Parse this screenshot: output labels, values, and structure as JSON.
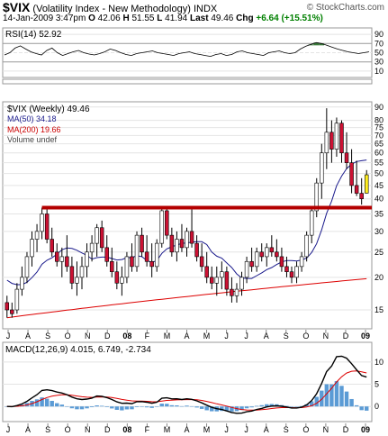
{
  "header": {
    "symbol": "$VIX",
    "name": "(Volatility Index - New Methodology)",
    "exchange": "INDX",
    "date": "14-Jan-2009 3:47pm",
    "open_label": "O",
    "open": "42.06",
    "high_label": "H",
    "high": "51.55",
    "low_label": "L",
    "low": "41.94",
    "last_label": "Last",
    "last": "49.46",
    "chg_label": "Chg",
    "chg": "+6.64 (+15.51%)",
    "brand": "© StockCharts.com"
  },
  "chart_data": {
    "type": "candlestick",
    "x_labels": [
      "J",
      "A",
      "S",
      "O",
      "N",
      "D",
      "08",
      "F",
      "M",
      "A",
      "M",
      "J",
      "J",
      "A",
      "S",
      "O",
      "N",
      "D",
      "09"
    ],
    "rsi": {
      "label": "RSI(14) 52.92",
      "yticks": [
        10,
        30,
        50,
        70,
        90
      ],
      "overbought": 70,
      "oversold": 30,
      "values": [
        45,
        50,
        60,
        65,
        58,
        52,
        48,
        45,
        55,
        60,
        50,
        44,
        48,
        52,
        55,
        50,
        47,
        45,
        48,
        52,
        58,
        55,
        50,
        46,
        44,
        48,
        50,
        52,
        54,
        50,
        48,
        46,
        44,
        48,
        50,
        52,
        48,
        46,
        44,
        42,
        46,
        48,
        44,
        46,
        52,
        54,
        50,
        48,
        46,
        44,
        50,
        52,
        54,
        50,
        48,
        50,
        58,
        64,
        68,
        72,
        70,
        66,
        62,
        58,
        55,
        52,
        50,
        48,
        50,
        52
      ]
    },
    "price": {
      "title": "$VIX (Weekly) 49.46",
      "ma50_label": "MA(50) 34.18",
      "ma200_label": "MA(200) 19.66",
      "volume_label": "Volume undef",
      "yticks": [
        15,
        20,
        25,
        30,
        35,
        40,
        45,
        50,
        55,
        60,
        65,
        70,
        75,
        80,
        90
      ],
      "ymin": 13,
      "ymax": 92,
      "log": true,
      "resistance": 37,
      "candles": [
        [
          16,
          17,
          14,
          15
        ],
        [
          15,
          16,
          14,
          14.5
        ],
        [
          15,
          19,
          14.5,
          18
        ],
        [
          18,
          22,
          17,
          20
        ],
        [
          20,
          25,
          19,
          24
        ],
        [
          24,
          30,
          22,
          28
        ],
        [
          28,
          32,
          25,
          30
        ],
        [
          30,
          37,
          28,
          35
        ],
        [
          35,
          37,
          27,
          28
        ],
        [
          28,
          31,
          24,
          25
        ],
        [
          25,
          27,
          22,
          23
        ],
        [
          23,
          26,
          20,
          24
        ],
        [
          24,
          29,
          21,
          22
        ],
        [
          22,
          24,
          18,
          19
        ],
        [
          19,
          23,
          17,
          20
        ],
        [
          20,
          24,
          18,
          22
        ],
        [
          22,
          27,
          20,
          25
        ],
        [
          25,
          29,
          23,
          27
        ],
        [
          27,
          32,
          24,
          31
        ],
        [
          31,
          33,
          25,
          26
        ],
        [
          26,
          29,
          22,
          23
        ],
        [
          23,
          26,
          20,
          21
        ],
        [
          21,
          23,
          18,
          19
        ],
        [
          19,
          22,
          17,
          20
        ],
        [
          20,
          25,
          19,
          24
        ],
        [
          24,
          27,
          21,
          22
        ],
        [
          22,
          30,
          21,
          29
        ],
        [
          29,
          31,
          24,
          25
        ],
        [
          25,
          29,
          22,
          23
        ],
        [
          23,
          27,
          20,
          22
        ],
        [
          22,
          28,
          21,
          27
        ],
        [
          27,
          37,
          26,
          36
        ],
        [
          36,
          37,
          28,
          29
        ],
        [
          29,
          31,
          24,
          25
        ],
        [
          25,
          30,
          23,
          28
        ],
        [
          28,
          32,
          25,
          26
        ],
        [
          26,
          31,
          24,
          30
        ],
        [
          30,
          37,
          26,
          27
        ],
        [
          27,
          29,
          23,
          24
        ],
        [
          24,
          27,
          21,
          22
        ],
        [
          22,
          25,
          19,
          20
        ],
        [
          20,
          22,
          18,
          19
        ],
        [
          19,
          22,
          17,
          20
        ],
        [
          20,
          23,
          18,
          21
        ],
        [
          21,
          22,
          17,
          18
        ],
        [
          18,
          20,
          16,
          17
        ],
        [
          17,
          19,
          16,
          18
        ],
        [
          18,
          21,
          17,
          20
        ],
        [
          20,
          24,
          19,
          23
        ],
        [
          23,
          26,
          21,
          22
        ],
        [
          22,
          26,
          21,
          25
        ],
        [
          25,
          27,
          23,
          24
        ],
        [
          24,
          27,
          22,
          26
        ],
        [
          26,
          29,
          24,
          25
        ],
        [
          25,
          28,
          23,
          24
        ],
        [
          24,
          26,
          21,
          22
        ],
        [
          22,
          24,
          20,
          21
        ],
        [
          21,
          22,
          19,
          20
        ],
        [
          20,
          23,
          19,
          22
        ],
        [
          22,
          25,
          21,
          24
        ],
        [
          24,
          30,
          23,
          29
        ],
        [
          29,
          37,
          27,
          36
        ],
        [
          36,
          48,
          34,
          46
        ],
        [
          46,
          65,
          40,
          60
        ],
        [
          60,
          89,
          52,
          72
        ],
        [
          72,
          80,
          55,
          62
        ],
        [
          62,
          82,
          58,
          78
        ],
        [
          78,
          80,
          55,
          60
        ],
        [
          60,
          72,
          52,
          55
        ],
        [
          55,
          62,
          42,
          45
        ],
        [
          45,
          56,
          41,
          42
        ],
        [
          42,
          48,
          38,
          40
        ],
        [
          42.06,
          51.55,
          41.94,
          49.46
        ]
      ]
    },
    "macd": {
      "label": "MACD(12,26,9) 4.015, 6.749, -2.734",
      "yticks": [
        0,
        5,
        10
      ],
      "ymin": -3,
      "ymax": 12
    }
  }
}
